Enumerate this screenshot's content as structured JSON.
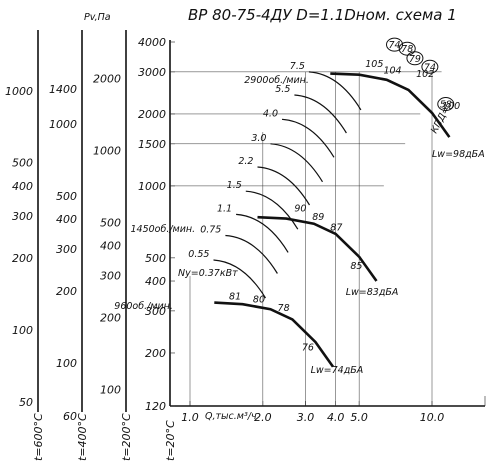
{
  "title": "ВР 80-75-4ДУ D=1.1Dном. схема 1",
  "chart_data": {
    "type": "line",
    "ylabel": "Pv,Па",
    "xlabel": "Q,тыс.м³/ч",
    "scale": "log-log",
    "x_ticks": [
      "1.0",
      "2.0",
      "3.0",
      "4.0",
      "5.0",
      "10.0"
    ],
    "y_ticks": [
      "120",
      "200",
      "300",
      "400",
      "500",
      "1000",
      "1500",
      "2000",
      "3000",
      "4000"
    ],
    "aux_axes": [
      {
        "name": "t=600°C",
        "ticks": [
          "50",
          "100",
          "200",
          "300",
          "400",
          "500",
          "1000"
        ]
      },
      {
        "name": "t=400°C",
        "ticks": [
          "60",
          "100",
          "200",
          "300",
          "400",
          "500",
          "1000",
          "1400"
        ]
      },
      {
        "name": "t=200°C",
        "ticks": [
          "100",
          "200",
          "300",
          "400",
          "500",
          "1000",
          "2000"
        ]
      },
      {
        "name": "t=20°C",
        "ticks": []
      }
    ],
    "speed_labels": [
      "2900об./мин.",
      "1450об./мин.",
      "960об./мин."
    ],
    "power_label": "Ny=0.37кВт",
    "power_values": [
      "7.5",
      "5.5",
      "4.0",
      "3.0",
      "2.2",
      "1.5",
      "1.1",
      "0.75",
      "0.55"
    ],
    "efficiency_axis_label": "КПД=",
    "efficiency_circles": [
      "74",
      "78",
      "79",
      "74",
      "58"
    ],
    "efficiency_values": [
      "105",
      "104",
      "102",
      "100",
      "90",
      "89",
      "87",
      "85",
      "81",
      "80",
      "78",
      "76"
    ],
    "noise_labels": [
      "Lw=98дБА",
      "Lw=83дБА",
      "Lw=74дБА"
    ],
    "series": [
      {
        "name": "2900об./мин.",
        "x": [
          3.8,
          5.0,
          6.5,
          8.0,
          10.0,
          11.8
        ],
        "y": [
          2950,
          2920,
          2780,
          2520,
          2020,
          1600
        ]
      },
      {
        "name": "1450об./мин.",
        "x": [
          1.9,
          2.5,
          3.25,
          4.0,
          5.0,
          5.9
        ],
        "y": [
          740,
          730,
          695,
          630,
          505,
          400
        ]
      },
      {
        "name": "960об./мин.",
        "x": [
          1.26,
          1.65,
          2.15,
          2.65,
          3.3,
          3.9
        ],
        "y": [
          325,
          320,
          305,
          276,
          222,
          175
        ]
      }
    ]
  }
}
